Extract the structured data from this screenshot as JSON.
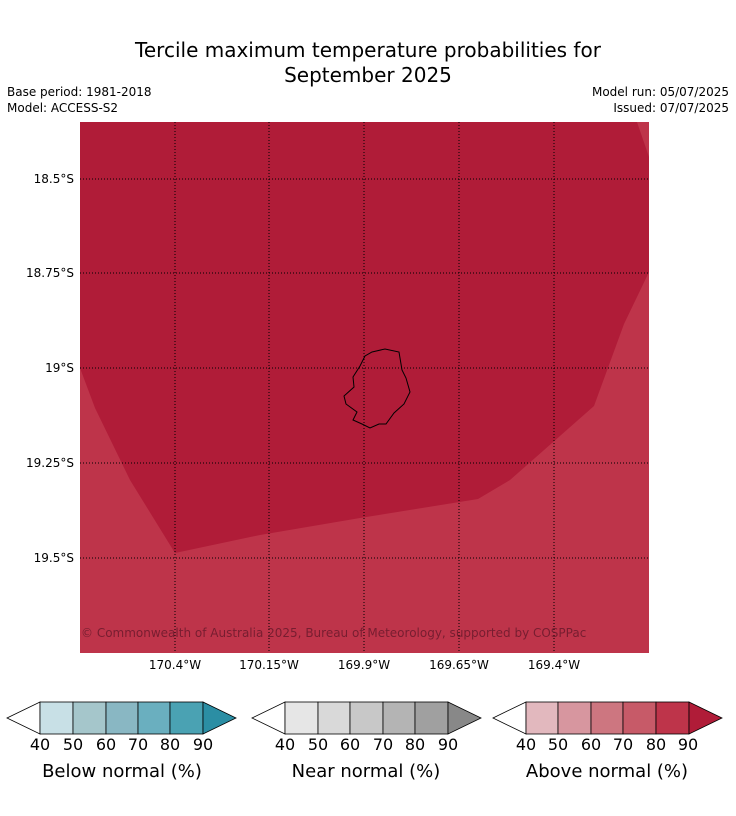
{
  "header": {
    "title_line1": "Tercile maximum temperature probabilities for",
    "title_line2": "September 2025",
    "base_period": "Base period: 1981-2018",
    "model": "Model: ACCESS-S2",
    "model_run": "Model run: 05/07/2025",
    "issued": "Issued: 07/07/2025"
  },
  "map": {
    "latitude_labels": [
      "18.5°S",
      "18.75°S",
      "19°S",
      "19.25°S",
      "19.5°S"
    ],
    "longitude_labels": [
      "170.4°W",
      "170.15°W",
      "169.9°W",
      "169.65°W",
      "169.4°W"
    ],
    "copyright": "© Commonwealth of Australia 2025, Bureau of Meteorology, supported by COSPPac",
    "fill_colors": {
      "above_90": "#b01c38",
      "above_80": "#be344a"
    }
  },
  "colorbars": [
    {
      "title": "Below normal (%)",
      "ticks": [
        "40",
        "50",
        "60",
        "70",
        "80",
        "90"
      ],
      "colors": [
        "#ffffff",
        "#c8e0e6",
        "#a5c6cb",
        "#89b7c3",
        "#6aafbf",
        "#4aa2b3",
        "#2b8ea4"
      ]
    },
    {
      "title": "Near normal (%)",
      "ticks": [
        "40",
        "50",
        "60",
        "70",
        "80",
        "90"
      ],
      "colors": [
        "#ffffff",
        "#e6e6e6",
        "#d9d9d9",
        "#c8c8c8",
        "#b4b4b4",
        "#a0a0a0",
        "#888888"
      ]
    },
    {
      "title": "Above normal (%)",
      "ticks": [
        "40",
        "50",
        "60",
        "70",
        "80",
        "90"
      ],
      "colors": [
        "#ffffff",
        "#e2b8be",
        "#d7969f",
        "#cd7680",
        "#c75a68",
        "#be344a",
        "#b01c38"
      ]
    }
  ]
}
